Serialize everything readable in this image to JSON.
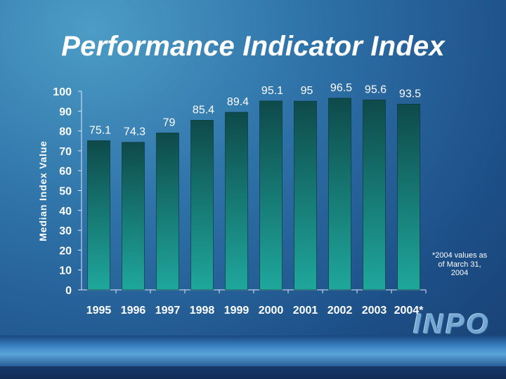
{
  "slide": {
    "title": "Performance Indicator Index",
    "footnote": "*2004 values as of March 31, 2004",
    "logo_text": "INPO"
  },
  "colors": {
    "bar_top": "#0e4a4a",
    "bar_bottom": "#1fa79c",
    "text": "#ffffff"
  },
  "chart_data": {
    "type": "bar",
    "title": "Performance Indicator Index",
    "ylabel": "Median Index Value",
    "xlabel": "",
    "categories": [
      "1995",
      "1996",
      "1997",
      "1998",
      "1999",
      "2000",
      "2001",
      "2002",
      "2003",
      "2004*"
    ],
    "values": [
      75.1,
      74.3,
      79,
      85.4,
      89.4,
      95.1,
      95,
      96.5,
      95.6,
      93.5
    ],
    "labels": [
      "75.1",
      "74.3",
      "79",
      "85.4",
      "89.4",
      "95.1",
      "95",
      "96.5",
      "95.6",
      "93.5"
    ],
    "ylim": [
      0,
      100
    ],
    "yticks": [
      0,
      10,
      20,
      30,
      40,
      50,
      60,
      70,
      80,
      90,
      100
    ],
    "grid": false,
    "legend": "none"
  }
}
